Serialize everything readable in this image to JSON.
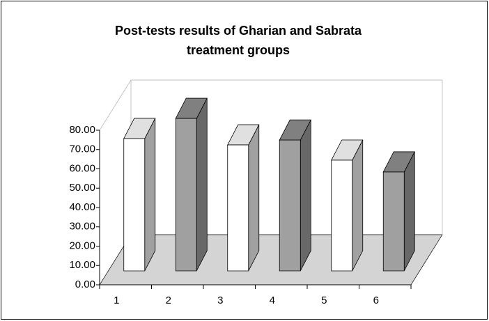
{
  "chart_data": {
    "type": "bar3d",
    "title": [
      "Post-tests results of Gharian and Sabrata",
      "treatment groups"
    ],
    "categories": [
      "1",
      "2",
      "3",
      "4",
      "5",
      "6"
    ],
    "values": [
      68.5,
      78.9,
      65.2,
      67.7,
      57.3,
      51.2
    ],
    "colors": [
      "#ffffff",
      "#a0a0a0",
      "#ffffff",
      "#a0a0a0",
      "#ffffff",
      "#a0a0a0"
    ],
    "ylim": [
      0,
      80
    ],
    "yticks": [
      {
        "value": 0,
        "label": "0.00"
      },
      {
        "value": 10,
        "label": "10.00"
      },
      {
        "value": 20,
        "label": "20.00"
      },
      {
        "value": 30,
        "label": "30.00"
      },
      {
        "value": 40,
        "label": "40.00"
      },
      {
        "value": 50,
        "label": "50.00"
      },
      {
        "value": 60,
        "label": "60.00"
      },
      {
        "value": 70,
        "label": "70.00"
      },
      {
        "value": 80,
        "label": "80.00"
      }
    ]
  }
}
